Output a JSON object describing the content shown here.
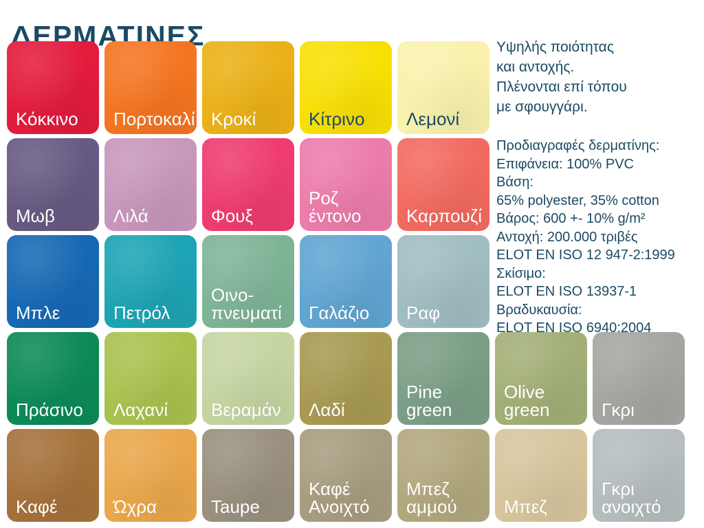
{
  "title": "ΔΕΡΜΑΤΙΝΕΣ",
  "intro_text": "Υψηλής ποιότητας\nκαι αντοχής.\nΠλένονται επί τόπου\nμε σφουγγάρι.",
  "specs_text": "Προδιαγραφές δερματίνης:\nΕπιφάνεια: 100% PVC\nΒάση:\n65% polyester, 35% cotton\nΒάρος: 600 +- 10% g/m²\nΑντοχή: 200.000 τριβές\nELOT EN ISO 12 947-2:1999\nΣκίσιμο:\nELOT EN ISO 13937-1\nΒραδυκαυσία:\nELOT EN ISO 6940:2004",
  "palette": {
    "heading_text": "#1b4a63",
    "label_light": "#ffffff",
    "label_dark": "#1b4a63",
    "background": "#ffffff"
  },
  "swatches": [
    {
      "label": "Κόκκινο",
      "color": "#e31b3d",
      "label_style": "light",
      "row": 1,
      "col": 1
    },
    {
      "label": "Πορτοκαλί",
      "color": "#f47521",
      "label_style": "light",
      "row": 1,
      "col": 2
    },
    {
      "label": "Κροκί",
      "color": "#ebb117",
      "label_style": "light",
      "row": 1,
      "col": 3
    },
    {
      "label": "Κίτρινο",
      "color": "#f8e005",
      "label_style": "dark",
      "row": 1,
      "col": 4
    },
    {
      "label": "Λεμονί",
      "color": "#f9f2ad",
      "label_style": "dark",
      "row": 1,
      "col": 5
    },
    {
      "label": "Μωβ",
      "color": "#675a82",
      "label_style": "light",
      "row": 2,
      "col": 1
    },
    {
      "label": "Λιλά",
      "color": "#c897bc",
      "label_style": "light",
      "row": 2,
      "col": 2
    },
    {
      "label": "Φουξ",
      "color": "#ee3c6e",
      "label_style": "light",
      "row": 2,
      "col": 3
    },
    {
      "label": "Ροζ\nέντονο",
      "color": "#ec7caa",
      "label_style": "light",
      "row": 2,
      "col": 4
    },
    {
      "label": "Καρπουζί",
      "color": "#f26a60",
      "label_style": "light",
      "row": 2,
      "col": 5
    },
    {
      "label": "Μπλε",
      "color": "#1668b4",
      "label_style": "light",
      "row": 3,
      "col": 1
    },
    {
      "label": "Πετρόλ",
      "color": "#1da4b5",
      "label_style": "light",
      "row": 3,
      "col": 2
    },
    {
      "label": "Οινο-\nπνευματί",
      "color": "#7eb496",
      "label_style": "light",
      "row": 3,
      "col": 3
    },
    {
      "label": "Γαλάζιο",
      "color": "#61a5d2",
      "label_style": "light",
      "row": 3,
      "col": 4
    },
    {
      "label": "Ραφ",
      "color": "#a0bdc2",
      "label_style": "light",
      "row": 3,
      "col": 5
    },
    {
      "label": "Πράσινο",
      "color": "#0c8a57",
      "label_style": "light",
      "row": 4,
      "col": 1
    },
    {
      "label": "Λαχανί",
      "color": "#a9c24f",
      "label_style": "light",
      "row": 4,
      "col": 2
    },
    {
      "label": "Βεραμάν",
      "color": "#c5d5a2",
      "label_style": "light",
      "row": 4,
      "col": 3
    },
    {
      "label": "Λαδί",
      "color": "#a89a53",
      "label_style": "light",
      "row": 4,
      "col": 4
    },
    {
      "label": "Pine\ngreen",
      "color": "#7b9e86",
      "label_style": "light",
      "row": 4,
      "col": 5
    },
    {
      "label": "Olive\ngreen",
      "color": "#a3af77",
      "label_style": "light",
      "row": 4,
      "col": 6
    },
    {
      "label": "Γκρι",
      "color": "#a4a6a1",
      "label_style": "light",
      "row": 4,
      "col": 7
    },
    {
      "label": "Καφέ",
      "color": "#a5713a",
      "label_style": "light",
      "row": 5,
      "col": 1
    },
    {
      "label": "Ώχρα",
      "color": "#eaa74b",
      "label_style": "light",
      "row": 5,
      "col": 2
    },
    {
      "label": "Taupe",
      "color": "#99907f",
      "label_style": "light",
      "row": 5,
      "col": 3
    },
    {
      "label": "Καφέ\nΑνοιχτό",
      "color": "#a89d80",
      "label_style": "light",
      "row": 5,
      "col": 4
    },
    {
      "label": "Μπεζ\nαμμού",
      "color": "#b2a87e",
      "label_style": "light",
      "row": 5,
      "col": 5
    },
    {
      "label": "Μπεζ",
      "color": "#d7c59d",
      "label_style": "light",
      "row": 5,
      "col": 6
    },
    {
      "label": "Γκρι\nανοιχτό",
      "color": "#b5bdbe",
      "label_style": "light",
      "row": 5,
      "col": 7
    }
  ]
}
